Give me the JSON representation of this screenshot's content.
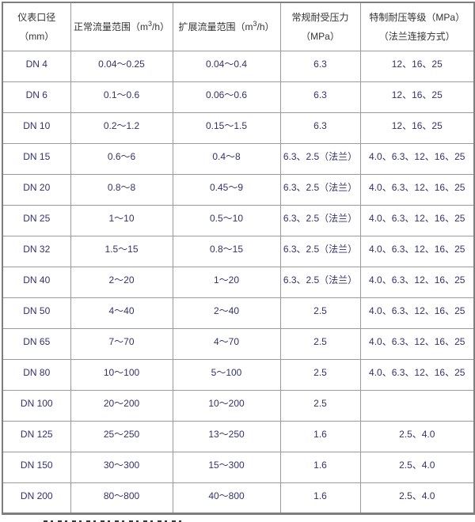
{
  "colors": {
    "border_outer": "#7e7e7e",
    "border_inner": "#9b9b9b",
    "text_header": "#333333",
    "text_data": "#32326e",
    "background": "#ffffff"
  },
  "table": {
    "headers": [
      {
        "text": "仪表口径（mm）"
      },
      {
        "pre": "正常流量范围（m",
        "sup": "3",
        "post": "/h）"
      },
      {
        "pre": "扩展流量范围（m",
        "sup": "3",
        "post": "/h）"
      },
      {
        "text": "常规耐受压力（MPa）"
      },
      {
        "text": "特制耐压等级（MPa）（法兰连接方式）"
      }
    ],
    "rows": [
      [
        "DN 4",
        "0.04～0.25",
        "0.04～0.4",
        "6.3",
        "12、16、25"
      ],
      [
        "DN 6",
        "0.1～0.6",
        "0.06～0.6",
        "6.3",
        "12、16、25"
      ],
      [
        "DN 10",
        "0.2～1.2",
        "0.15～1.5",
        "6.3",
        "12、16、25"
      ],
      [
        "DN 15",
        "0.6～6",
        "0.4～8",
        "6.3、2.5（法兰）",
        "4.0、6.3、12、16、25"
      ],
      [
        "DN 20",
        "0.8～8",
        "0.45～9",
        "6.3、2.5（法兰）",
        "4.0、6.3、12、16、25"
      ],
      [
        "DN 25",
        "1～10",
        "0.5～10",
        "6.3、2.5（法兰）",
        "4.0、6.3、12、16、25"
      ],
      [
        "DN 32",
        "1.5～15",
        "0.8～15",
        "6.3、2.5（法兰）",
        "4.0、6.3、12、16、25"
      ],
      [
        "DN 40",
        "2～20",
        "1～20",
        "6.3、2.5（法兰）",
        "4.0、6.3、12、16、25"
      ],
      [
        "DN 50",
        "4～40",
        "2～40",
        "2.5",
        "4.0、6.3、12、16、25"
      ],
      [
        "DN 65",
        "7～70",
        "4～70",
        "2.5",
        "4.0、6.3、12、16、25"
      ],
      [
        "DN 80",
        "10～100",
        "5～100",
        "2.5",
        "4.0、6.3、12、16、25"
      ],
      [
        "DN 100",
        "20～200",
        "10～200",
        "2.5",
        ""
      ],
      [
        "DN 125",
        "25～250",
        "13～250",
        "1.6",
        "2.5、4.0"
      ],
      [
        "DN 150",
        "30～300",
        "15～300",
        "1.6",
        "2.5、4.0"
      ],
      [
        "DN 200",
        "80～800",
        "40～800",
        "1.6",
        "2.5、4.0"
      ]
    ]
  }
}
